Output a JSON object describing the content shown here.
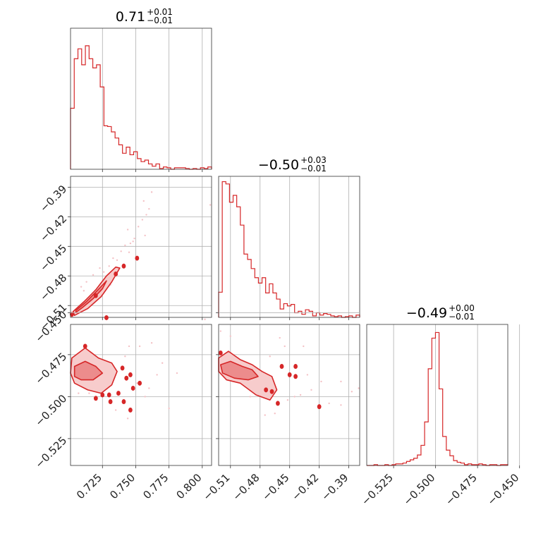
{
  "colors": {
    "accent": "#d62728",
    "fill_inner": "#ec8c8c",
    "fill_outer": "#f7cccc",
    "points": "#f4c2c6",
    "grid": "#b0b0b0"
  },
  "chart_data": {
    "type": "corner",
    "grid": true,
    "parameters": [
      {
        "id": "p0",
        "median": "0.71",
        "upper": "+0.01",
        "lower": "−0.01",
        "range": [
          0.701,
          0.807
        ],
        "ticks": [
          0.725,
          0.75,
          0.775,
          0.8
        ],
        "tick_labels": [
          "0.725",
          "0.750",
          "0.775",
          "0.800"
        ]
      },
      {
        "id": "p1",
        "median": "−0.50",
        "upper": "+0.03",
        "lower": "−0.01",
        "range": [
          -0.522,
          -0.379
        ],
        "ticks": [
          -0.51,
          -0.48,
          -0.45,
          -0.42,
          -0.39
        ],
        "tick_labels": [
          "−0.51",
          "−0.48",
          "−0.45",
          "−0.42",
          "−0.39"
        ]
      },
      {
        "id": "p2",
        "median": "−0.49",
        "upper": "+0.00",
        "lower": "−0.01",
        "range": [
          -0.541,
          -0.457
        ],
        "ticks": [
          -0.525,
          -0.5,
          -0.475,
          -0.45
        ],
        "tick_labels": [
          "−0.525",
          "−0.500",
          "−0.475",
          "−0.450"
        ]
      }
    ],
    "histograms": [
      {
        "param": 0,
        "counts": [
          80,
          145,
          158,
          137,
          162,
          145,
          133,
          137,
          108,
          57,
          56,
          49,
          41,
          32,
          21,
          29,
          19,
          23,
          14,
          10,
          12,
          7,
          4,
          7,
          1,
          3,
          2,
          0,
          2,
          2,
          2,
          1,
          0,
          1,
          0,
          2,
          1,
          3
        ],
        "ymax": 185
      },
      {
        "param": 1,
        "counts": [
          33,
          178,
          175,
          151,
          160,
          145,
          121,
          83,
          76,
          64,
          52,
          45,
          52,
          32,
          44,
          32,
          24,
          11,
          18,
          15,
          17,
          6,
          8,
          4,
          10,
          8,
          2,
          6,
          3,
          5,
          4,
          2,
          1,
          2,
          0,
          1,
          2,
          0,
          3
        ],
        "ymax": 185
      },
      {
        "param": 2,
        "counts": [
          0,
          0,
          1,
          0,
          0,
          1,
          0,
          1,
          2,
          2,
          3,
          5,
          7,
          9,
          13,
          25,
          54,
          120,
          158,
          165,
          95,
          36,
          19,
          12,
          6,
          4,
          3,
          1,
          2,
          1,
          1,
          2,
          1,
          0,
          1,
          1,
          0,
          1,
          1
        ],
        "ymax": 175
      }
    ],
    "panels_2d": [
      {
        "x": 0,
        "y": 1,
        "outer": [
          [
            0.703,
            -0.516
          ],
          [
            0.712,
            -0.505
          ],
          [
            0.72,
            -0.494
          ],
          [
            0.728,
            -0.48
          ],
          [
            0.735,
            -0.471
          ],
          [
            0.738,
            -0.472
          ],
          [
            0.732,
            -0.486
          ],
          [
            0.724,
            -0.501
          ],
          [
            0.714,
            -0.513
          ],
          [
            0.704,
            -0.52
          ]
        ],
        "inner": [
          [
            0.705,
            -0.515
          ],
          [
            0.713,
            -0.506
          ],
          [
            0.721,
            -0.495
          ],
          [
            0.728,
            -0.485
          ],
          [
            0.725,
            -0.493
          ],
          [
            0.718,
            -0.503
          ],
          [
            0.71,
            -0.512
          ],
          [
            0.705,
            -0.517
          ]
        ],
        "islands": [
          [
            0.741,
            -0.47
          ],
          [
            0.751,
            -0.462
          ],
          [
            0.735,
            -0.478
          ],
          [
            0.72,
            -0.5
          ],
          [
            0.702,
            -0.519
          ]
        ],
        "points": [
          [
            0.756,
            -0.404
          ],
          [
            0.762,
            -0.395
          ],
          [
            0.806,
            -0.408
          ],
          [
            0.758,
            -0.418
          ],
          [
            0.742,
            -0.449
          ],
          [
            0.748,
            -0.445
          ],
          [
            0.752,
            -0.43
          ],
          [
            0.755,
            -0.423
          ],
          [
            0.745,
            -0.456
          ],
          [
            0.733,
            -0.462
          ],
          [
            0.736,
            -0.464
          ],
          [
            0.739,
            -0.455
          ],
          [
            0.73,
            -0.47
          ],
          [
            0.726,
            -0.476
          ],
          [
            0.711,
            -0.495
          ],
          [
            0.713,
            -0.486
          ],
          [
            0.718,
            -0.479
          ],
          [
            0.749,
            -0.442
          ],
          [
            0.76,
            -0.412
          ],
          [
            0.744,
            -0.433
          ],
          [
            0.731,
            -0.489
          ],
          [
            0.709,
            -0.491
          ],
          [
            0.746,
            -0.447
          ],
          [
            0.757,
            -0.439
          ],
          [
            0.723,
            -0.472
          ]
        ]
      },
      {
        "x": 0,
        "y": 2,
        "outer": [
          [
            0.702,
            -0.477
          ],
          [
            0.712,
            -0.471
          ],
          [
            0.722,
            -0.477
          ],
          [
            0.732,
            -0.48
          ],
          [
            0.736,
            -0.485
          ],
          [
            0.732,
            -0.493
          ],
          [
            0.724,
            -0.498
          ],
          [
            0.714,
            -0.496
          ],
          [
            0.704,
            -0.492
          ],
          [
            0.701,
            -0.486
          ]
        ],
        "inner": [
          [
            0.704,
            -0.482
          ],
          [
            0.712,
            -0.479
          ],
          [
            0.72,
            -0.482
          ],
          [
            0.725,
            -0.486
          ],
          [
            0.718,
            -0.49
          ],
          [
            0.709,
            -0.49
          ],
          [
            0.704,
            -0.488
          ]
        ],
        "islands": [
          [
            0.728,
            -0.453
          ],
          [
            0.74,
            -0.483
          ],
          [
            0.743,
            -0.489
          ],
          [
            0.746,
            -0.487
          ],
          [
            0.748,
            -0.495
          ],
          [
            0.741,
            -0.503
          ],
          [
            0.746,
            -0.508
          ],
          [
            0.753,
            -0.492
          ],
          [
            0.731,
            -0.503
          ],
          [
            0.737,
            -0.498
          ],
          [
            0.712,
            -0.47
          ],
          [
            0.725,
            -0.499
          ],
          [
            0.73,
            -0.499
          ],
          [
            0.72,
            -0.501
          ]
        ],
        "points": [
          [
            0.728,
            -0.452
          ],
          [
            0.751,
            -0.492
          ],
          [
            0.742,
            -0.476
          ],
          [
            0.762,
            -0.468
          ],
          [
            0.77,
            -0.48
          ],
          [
            0.766,
            -0.487
          ],
          [
            0.757,
            -0.5
          ],
          [
            0.775,
            -0.507
          ],
          [
            0.781,
            -0.486
          ],
          [
            0.735,
            -0.508
          ],
          [
            0.744,
            -0.513
          ],
          [
            0.753,
            -0.47
          ],
          [
            0.76,
            -0.495
          ],
          [
            0.715,
            -0.498
          ],
          [
            0.707,
            -0.498
          ],
          [
            0.802,
            -0.454
          ],
          [
            0.745,
            -0.47
          ]
        ]
      },
      {
        "x": 1,
        "y": 2,
        "outer": [
          [
            -0.522,
            -0.477
          ],
          [
            -0.512,
            -0.473
          ],
          [
            -0.5,
            -0.478
          ],
          [
            -0.488,
            -0.481
          ],
          [
            -0.478,
            -0.485
          ],
          [
            -0.468,
            -0.488
          ],
          [
            -0.463,
            -0.496
          ],
          [
            -0.47,
            -0.502
          ],
          [
            -0.484,
            -0.499
          ],
          [
            -0.5,
            -0.492
          ],
          [
            -0.514,
            -0.49
          ],
          [
            -0.522,
            -0.485
          ]
        ],
        "inner": [
          [
            -0.52,
            -0.481
          ],
          [
            -0.51,
            -0.479
          ],
          [
            -0.498,
            -0.482
          ],
          [
            -0.488,
            -0.484
          ],
          [
            -0.482,
            -0.488
          ],
          [
            -0.492,
            -0.49
          ],
          [
            -0.506,
            -0.489
          ],
          [
            -0.518,
            -0.486
          ]
        ],
        "islands": [
          [
            -0.458,
            -0.482
          ],
          [
            -0.45,
            -0.487
          ],
          [
            -0.444,
            -0.482
          ],
          [
            -0.444,
            -0.488
          ],
          [
            -0.468,
            -0.497
          ],
          [
            -0.474,
            -0.496
          ],
          [
            -0.462,
            -0.504
          ],
          [
            -0.42,
            -0.506
          ],
          [
            -0.52,
            -0.474
          ]
        ],
        "points": [
          [
            -0.52,
            -0.461
          ],
          [
            -0.51,
            -0.464
          ],
          [
            -0.47,
            -0.476
          ],
          [
            -0.455,
            -0.47
          ],
          [
            -0.436,
            -0.47
          ],
          [
            -0.432,
            -0.487
          ],
          [
            -0.428,
            -0.496
          ],
          [
            -0.445,
            -0.5
          ],
          [
            -0.452,
            -0.502
          ],
          [
            -0.418,
            -0.491
          ],
          [
            -0.398,
            -0.491
          ],
          [
            -0.387,
            -0.497
          ],
          [
            -0.398,
            -0.505
          ],
          [
            -0.38,
            -0.495
          ],
          [
            -0.49,
            -0.5
          ],
          [
            -0.465,
            -0.51
          ],
          [
            -0.46,
            -0.465
          ],
          [
            -0.41,
            -0.504
          ],
          [
            -0.475,
            -0.511
          ],
          [
            -0.439,
            -0.499
          ]
        ]
      }
    ]
  }
}
